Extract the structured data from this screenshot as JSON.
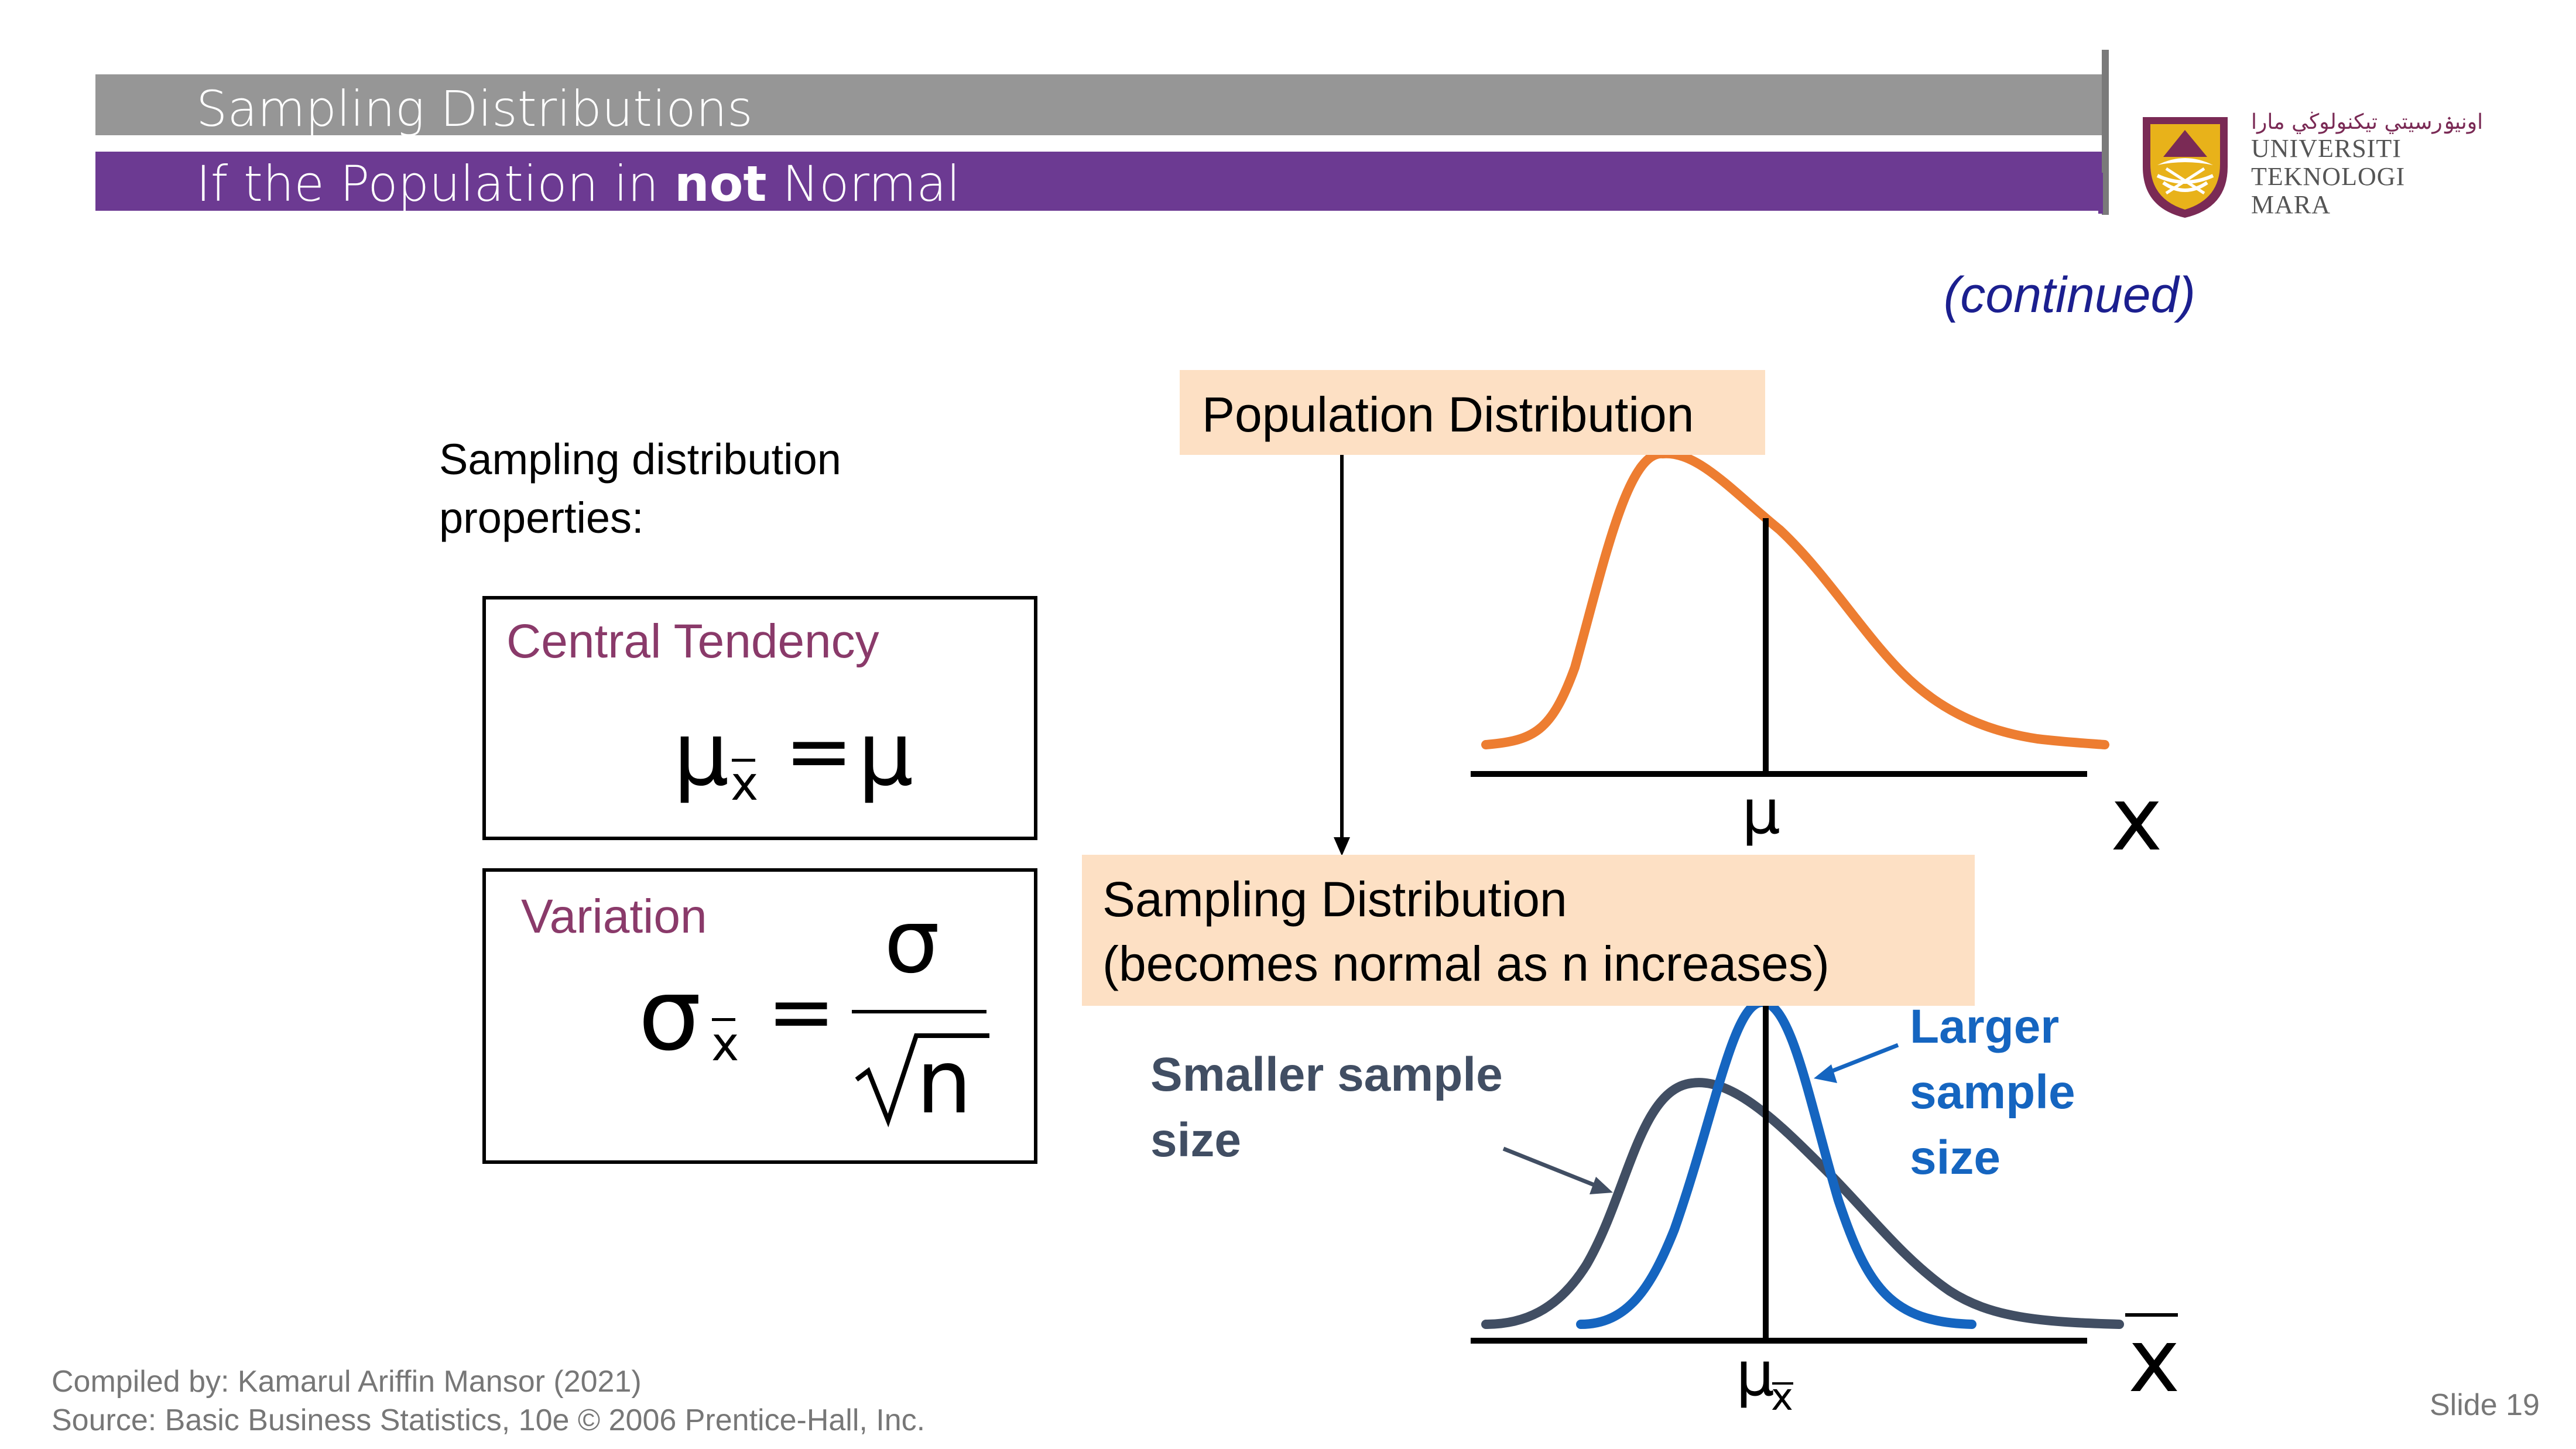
{
  "header": {
    "title": "Sampling Distributions",
    "subtitle_pre": "If the Population in",
    "subtitle_bold": "not",
    "subtitle_post": "Normal"
  },
  "logo": {
    "arabic": "اونيۏرسيتي تيكنولوڬي مارا",
    "line1": "UNIVERSITI",
    "line2": "TEKNOLOGI",
    "line3": "MARA"
  },
  "continued": "(continued)",
  "properties": {
    "label_line1": "Sampling distribution",
    "label_line2": "properties:",
    "central": {
      "title": "Central Tendency",
      "mu": "μ",
      "sub": "x",
      "eq": "=",
      "rhs": "μ"
    },
    "variation": {
      "title": "Variation",
      "sigma": "σ",
      "sub": "x",
      "eq": "=",
      "numerator": "σ",
      "denominator": "n"
    }
  },
  "diagram": {
    "population_label": "Population Distribution",
    "sampling_label_line1": "Sampling Distribution",
    "sampling_label_line2": "(becomes normal as n increases)",
    "pop_axis_mean": "μ",
    "pop_axis_var": "x",
    "samp_axis_mean": "μ",
    "samp_axis_mean_sub": "x",
    "samp_axis_var": "x",
    "smaller_line1": "Smaller sample",
    "smaller_line2": "size",
    "larger_line1": "Larger",
    "larger_line2": "sample",
    "larger_line3": "size"
  },
  "colors": {
    "header_gray": "#969696",
    "header_purple": "#6c3a92",
    "population_curve": "#ed7d31",
    "small_sample_curve": "#414e63",
    "large_sample_curve": "#1565c0",
    "label_box": "#fde0c4",
    "property_title": "#8a3a6a",
    "continued": "#1b1f8f"
  },
  "footer": {
    "compiled": "Compiled by: Kamarul Ariffin Mansor (2021)",
    "source": "Source: Basic Business Statistics, 10e © 2006 Prentice-Hall, Inc.",
    "slide": "Slide 19"
  }
}
